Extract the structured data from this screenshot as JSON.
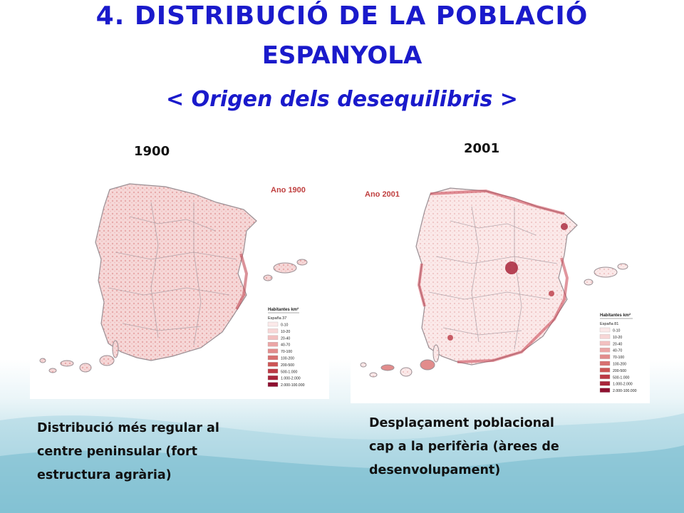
{
  "title": {
    "line1": "4. DISTRIBUCIÓ DE LA POBLACIÓ",
    "line2": "ESPANYOLA",
    "subtitle": "< Origen dels desequilibris >"
  },
  "maps": [
    {
      "year_label": "1900",
      "map_heading": "Ano 1900",
      "legend_title": "Habitantes km²",
      "legend_avg": "España 37",
      "legend_items": [
        "0-10",
        "10-20",
        "20-40",
        "40-70",
        "70-100",
        "100-200",
        "200-500",
        "500-1.000",
        "1.000-2.000",
        "2.000-100.000"
      ],
      "caption_lines": [
        "Distribució més regular al",
        "centre peninsular (fort",
        "estructura agrària)"
      ]
    },
    {
      "year_label": "2001",
      "map_heading": "Ano 2001",
      "legend_title": "Habitantes km²",
      "legend_avg": "España 81",
      "legend_items": [
        "0-10",
        "10-20",
        "20-40",
        "40-70",
        "70-100",
        "100-200",
        "200-500",
        "500-1.000",
        "1.000-2.000",
        "2.000-100.000"
      ],
      "caption_lines": [
        "Desplaçament poblacional",
        "cap a la perifèria (àrees de",
        "desenvolupament)"
      ]
    }
  ],
  "legend_colors": [
    "#fbe9e9",
    "#f7d6d6",
    "#f2c0c0",
    "#eba6a6",
    "#e28c8c",
    "#d87070",
    "#cc5555",
    "#bc3a45",
    "#a8243a",
    "#8e1030"
  ],
  "colors": {
    "title": "#1a1acb",
    "land": "#f4cfcf",
    "border": "#9a8f94"
  }
}
